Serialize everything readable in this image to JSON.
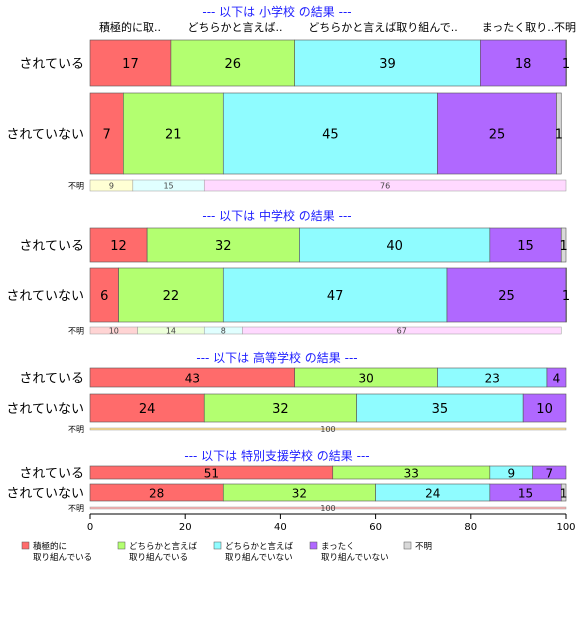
{
  "chart_data": {
    "type": "bar",
    "orientation": "horizontal",
    "stacked": "percent",
    "xlim": [
      0,
      100
    ],
    "x_ticks": [
      "0",
      "20",
      "40",
      "60",
      "80",
      "100"
    ],
    "column_headers": [
      "積極的に取..",
      "どちらかと言えば..",
      "どちらかと言えば取り組んで..",
      "まったく取り..",
      "不明"
    ],
    "legend": {
      "placement": "bottom",
      "entries": [
        {
          "label": "積極的に\n取り組んでいる",
          "color": "#ff6b6b"
        },
        {
          "label": "どちらかと言えば\n取り組んでいる",
          "color": "#b3ff70"
        },
        {
          "label": "どちらかと言えば\n取り組んでいない",
          "color": "#8ffcff"
        },
        {
          "label": "まったく\n取り組んでいない",
          "color": "#b068ff"
        },
        {
          "label": "不明",
          "color": "#d9d9d9"
        }
      ]
    },
    "panels": [
      {
        "title": "--- 以下は 小学校 の結果 ---",
        "rows": [
          {
            "label": "されている",
            "values": [
              17,
              26,
              39,
              18,
              1
            ]
          },
          {
            "label": "されていない",
            "values": [
              7,
              21,
              45,
              25,
              1
            ]
          }
        ],
        "unknown": {
          "label": "不明",
          "values": [
            9,
            15,
            76
          ],
          "colors": [
            "#ffffd4",
            "#e0ffff",
            "#ffd9ff"
          ]
        }
      },
      {
        "title": "--- 以下は 中学校 の結果 ---",
        "rows": [
          {
            "label": "されている",
            "values": [
              12,
              32,
              40,
              15,
              1
            ]
          },
          {
            "label": "されていない",
            "values": [
              6,
              22,
              47,
              25,
              1
            ]
          }
        ],
        "unknown": {
          "label": "不明",
          "values": [
            10,
            14,
            8,
            67
          ],
          "colors": [
            "#ffd4d4",
            "#ecffd9",
            "#e0ffff",
            "#ffd9ff"
          ]
        }
      },
      {
        "title": "--- 以下は 高等学校 の結果 ---",
        "rows": [
          {
            "label": "されている",
            "values": [
              43,
              30,
              23,
              4,
              0
            ]
          },
          {
            "label": "されていない",
            "values": [
              24,
              32,
              35,
              10,
              0
            ]
          }
        ],
        "unknown": {
          "label": "不明",
          "values": [
            100
          ],
          "colors": [
            "#ffe08a"
          ]
        }
      },
      {
        "title": "--- 以下は 特別支援学校 の結果 ---",
        "rows": [
          {
            "label": "されている",
            "values": [
              51,
              33,
              9,
              7,
              0
            ]
          },
          {
            "label": "されていない",
            "values": [
              28,
              32,
              24,
              15,
              1
            ]
          }
        ],
        "unknown": {
          "label": "不明",
          "values": [
            100
          ],
          "colors": [
            "#ffb3b3"
          ]
        }
      }
    ]
  }
}
